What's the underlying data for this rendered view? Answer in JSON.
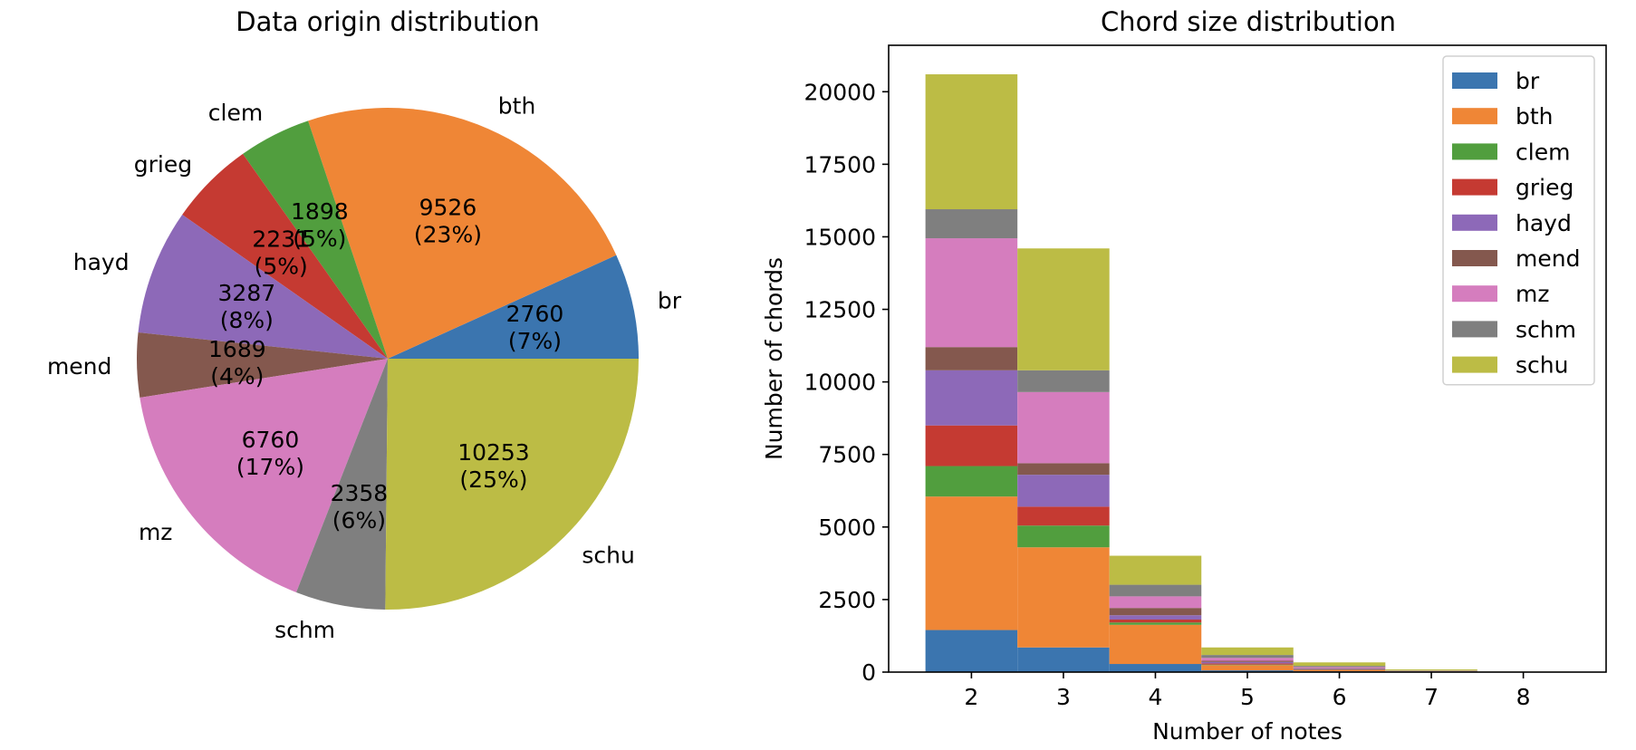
{
  "chart_data": [
    {
      "type": "pie",
      "title": "Data origin distribution",
      "labels": [
        "br",
        "bth",
        "clem",
        "grieg",
        "hayd",
        "mend",
        "mz",
        "schm",
        "schu"
      ],
      "values": [
        2760,
        9526,
        1898,
        2231,
        3287,
        1689,
        6760,
        2358,
        10253
      ],
      "percent_labels": [
        "(7%)",
        "(23%)",
        "(5%)",
        "(5%)",
        "(8%)",
        "(4%)",
        "(17%)",
        "(6%)",
        "(25%)"
      ],
      "value_labels": [
        "2760",
        "9526",
        "1898",
        "2231",
        "3287",
        "1689",
        "6760",
        "2358",
        "10253"
      ],
      "start_angle": 0,
      "direction": "counterclockwise",
      "colors": [
        "#3b75af",
        "#ef8636",
        "#519e3e",
        "#c53a32",
        "#8d69b8",
        "#84584e",
        "#d57dbe",
        "#7f7f7f",
        "#bcbc45"
      ]
    },
    {
      "type": "bar",
      "stacked": true,
      "title": "Chord size distribution",
      "xlabel": "Number of notes",
      "ylabel": "Number of chords",
      "categories": [
        2,
        3,
        4,
        5,
        6,
        7,
        8
      ],
      "xticks": [
        "2",
        "3",
        "4",
        "5",
        "6",
        "7",
        "8"
      ],
      "xlim": [
        1.1,
        8.9
      ],
      "ylim": [
        0,
        21600
      ],
      "yticks": [
        "0",
        "2500",
        "5000",
        "7500",
        "10000",
        "12500",
        "15000",
        "17500",
        "20000"
      ],
      "ytick_values": [
        0,
        2500,
        5000,
        7500,
        10000,
        12500,
        15000,
        17500,
        20000
      ],
      "legend_position": "top-right",
      "series": [
        {
          "name": "br",
          "color": "#3b75af",
          "values": [
            1450,
            850,
            280,
            60,
            30,
            5,
            2
          ]
        },
        {
          "name": "bth",
          "color": "#ef8636",
          "values": [
            4600,
            3450,
            1350,
            180,
            40,
            10,
            3
          ]
        },
        {
          "name": "clem",
          "color": "#519e3e",
          "values": [
            1050,
            750,
            80,
            20,
            10,
            3,
            1
          ]
        },
        {
          "name": "grieg",
          "color": "#c53a32",
          "values": [
            1400,
            650,
            100,
            40,
            15,
            4,
            1
          ]
        },
        {
          "name": "hayd",
          "color": "#8d69b8",
          "values": [
            1900,
            1100,
            150,
            50,
            20,
            5,
            1
          ]
        },
        {
          "name": "mend",
          "color": "#84584e",
          "values": [
            800,
            400,
            250,
            40,
            20,
            5,
            1
          ]
        },
        {
          "name": "mz",
          "color": "#d57dbe",
          "values": [
            3750,
            2450,
            400,
            100,
            40,
            10,
            2
          ]
        },
        {
          "name": "schm",
          "color": "#7f7f7f",
          "values": [
            1000,
            750,
            400,
            100,
            40,
            10,
            2
          ]
        },
        {
          "name": "schu",
          "color": "#bcbc45",
          "values": [
            4650,
            4200,
            1000,
            260,
            120,
            40,
            5
          ]
        }
      ]
    }
  ]
}
